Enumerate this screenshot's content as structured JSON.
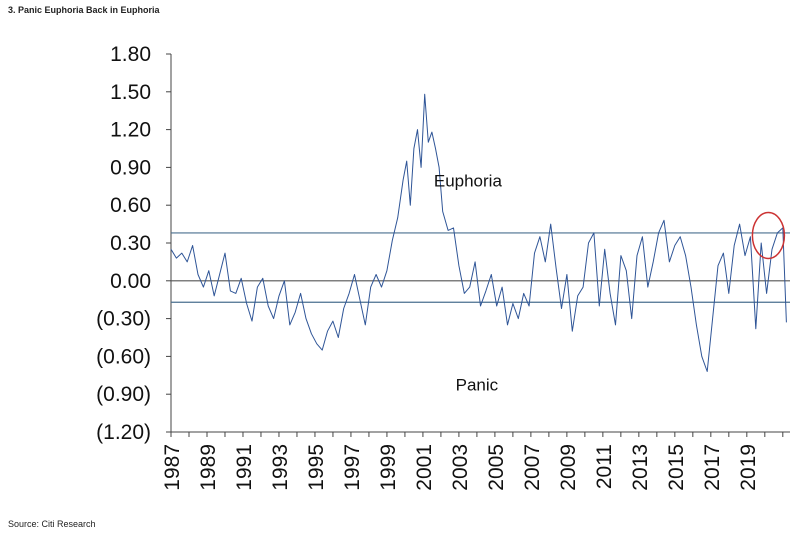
{
  "header": {
    "title": "3. Panic Euphoria Back in Euphoria"
  },
  "footer": {
    "source": "Source: Citi Research"
  },
  "chart_data": {
    "type": "line",
    "title": "3. Panic Euphoria Back in Euphoria",
    "xlabel": "",
    "ylabel": "",
    "ylim": [
      -1.2,
      1.8
    ],
    "xlim": [
      1987,
      2021.4
    ],
    "y_ticks": [
      1.8,
      1.5,
      1.2,
      0.9,
      0.6,
      0.3,
      0.0,
      -0.3,
      -0.6,
      -0.9,
      -1.2
    ],
    "y_tick_labels": [
      "1.80",
      "1.50",
      "1.20",
      "0.90",
      "0.60",
      "0.30",
      "0.00",
      "(0.30)",
      "(0.60)",
      "(0.90)",
      "(1.20)"
    ],
    "x_tick_labels": [
      "1987",
      "1989",
      "1991",
      "1993",
      "1995",
      "1997",
      "1999",
      "2001",
      "2003",
      "2005",
      "2007",
      "2009",
      "2011",
      "2013",
      "2015",
      "2017",
      "2019"
    ],
    "reference_lines": [
      {
        "y": 0.38,
        "color": "#4a6f8f"
      },
      {
        "y": 0.0,
        "color": "#555555"
      },
      {
        "y": -0.17,
        "color": "#4a6f8f"
      }
    ],
    "annotations": [
      {
        "text": "Euphoria",
        "x": 2003.5,
        "y": 0.75
      },
      {
        "text": "Panic",
        "x": 2004.0,
        "y": -0.87
      }
    ],
    "highlight": {
      "shape": "ellipse",
      "x": 2020.2,
      "y": 0.36,
      "color": "#cc3333"
    },
    "series": [
      {
        "color": "#2f5597",
        "x": [
          1987.0,
          1987.3,
          1987.6,
          1987.9,
          1988.2,
          1988.5,
          1988.8,
          1989.1,
          1989.4,
          1989.7,
          1990.0,
          1990.3,
          1990.6,
          1990.9,
          1991.2,
          1991.5,
          1991.8,
          1992.1,
          1992.4,
          1992.7,
          1993.0,
          1993.3,
          1993.6,
          1993.9,
          1994.2,
          1994.5,
          1994.8,
          1995.1,
          1995.4,
          1995.7,
          1996.0,
          1996.3,
          1996.6,
          1996.9,
          1997.2,
          1997.5,
          1997.8,
          1998.1,
          1998.4,
          1998.7,
          1999.0,
          1999.3,
          1999.6,
          1999.9,
          2000.1,
          2000.3,
          2000.5,
          2000.7,
          2000.9,
          2001.1,
          2001.3,
          2001.5,
          2001.7,
          2001.9,
          2002.1,
          2002.4,
          2002.7,
          2003.0,
          2003.3,
          2003.6,
          2003.9,
          2004.2,
          2004.5,
          2004.8,
          2005.1,
          2005.4,
          2005.7,
          2006.0,
          2006.3,
          2006.6,
          2006.9,
          2007.2,
          2007.5,
          2007.8,
          2008.1,
          2008.4,
          2008.7,
          2009.0,
          2009.3,
          2009.6,
          2009.9,
          2010.2,
          2010.5,
          2010.8,
          2011.1,
          2011.4,
          2011.7,
          2012.0,
          2012.3,
          2012.6,
          2012.9,
          2013.2,
          2013.5,
          2013.8,
          2014.1,
          2014.4,
          2014.7,
          2015.0,
          2015.3,
          2015.6,
          2015.9,
          2016.2,
          2016.5,
          2016.8,
          2017.1,
          2017.4,
          2017.7,
          2018.0,
          2018.3,
          2018.6,
          2018.9,
          2019.2,
          2019.5,
          2019.8,
          2020.1,
          2020.4,
          2020.7,
          2021.0,
          2021.2
        ],
        "y": [
          0.25,
          0.18,
          0.22,
          0.15,
          0.28,
          0.05,
          -0.05,
          0.08,
          -0.12,
          0.05,
          0.22,
          -0.08,
          -0.1,
          0.02,
          -0.18,
          -0.32,
          -0.05,
          0.02,
          -0.2,
          -0.3,
          -0.12,
          0.0,
          -0.35,
          -0.25,
          -0.1,
          -0.3,
          -0.42,
          -0.5,
          -0.55,
          -0.4,
          -0.32,
          -0.45,
          -0.22,
          -0.1,
          0.05,
          -0.15,
          -0.35,
          -0.05,
          0.05,
          -0.05,
          0.08,
          0.32,
          0.5,
          0.8,
          0.95,
          0.6,
          1.05,
          1.2,
          0.9,
          1.48,
          1.1,
          1.18,
          1.05,
          0.9,
          0.55,
          0.4,
          0.42,
          0.12,
          -0.1,
          -0.05,
          0.15,
          -0.2,
          -0.08,
          0.05,
          -0.2,
          -0.05,
          -0.35,
          -0.18,
          -0.3,
          -0.1,
          -0.2,
          0.22,
          0.35,
          0.15,
          0.45,
          0.1,
          -0.22,
          0.05,
          -0.4,
          -0.12,
          -0.05,
          0.3,
          0.38,
          -0.2,
          0.25,
          -0.1,
          -0.35,
          0.2,
          0.08,
          -0.3,
          0.2,
          0.35,
          -0.05,
          0.15,
          0.38,
          0.48,
          0.15,
          0.28,
          0.35,
          0.2,
          -0.05,
          -0.35,
          -0.6,
          -0.72,
          -0.3,
          0.12,
          0.22,
          -0.1,
          0.28,
          0.45,
          0.2,
          0.35,
          -0.38,
          0.3,
          -0.1,
          0.25,
          0.38,
          0.42,
          -0.33
        ]
      }
    ]
  }
}
